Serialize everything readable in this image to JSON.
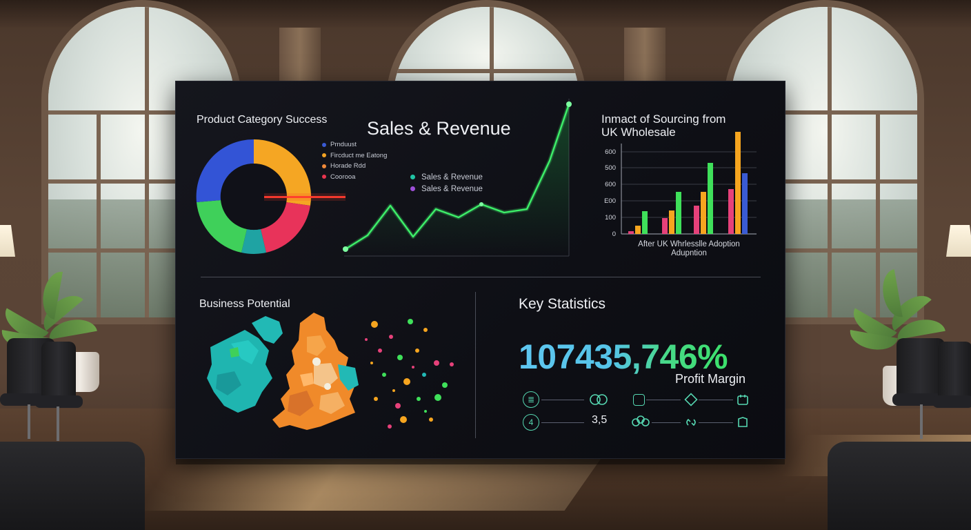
{
  "dashboard": {
    "product_panel": {
      "title": "Product Category Success",
      "legend": [
        {
          "label": "Prnduust",
          "color": "#3a5bd4"
        },
        {
          "label": "Fircduct me Eatong",
          "color": "#f2a324"
        },
        {
          "label": "Horade Rdd",
          "color": "#f08a3a"
        },
        {
          "label": "Coorooa",
          "color": "#e8354f"
        }
      ],
      "donut_colors": [
        "#f5a623",
        "#e8335a",
        "#1fa3a3",
        "#3fd05a",
        "#3354d6"
      ]
    },
    "sales_panel": {
      "title": "Sales & Revenue",
      "legend": [
        {
          "label": "Sales & Revenue",
          "color": "#21c4a4"
        },
        {
          "label": "Sales & Revenue",
          "color": "#9e4fd8"
        }
      ],
      "line_color": "#3ef06a"
    },
    "impact_panel": {
      "title_line1": "Inmact of Sourcing from",
      "title_line2": "UK Wholesale",
      "y_labels": [
        "600",
        "500",
        "600",
        "E00",
        "100",
        "0"
      ],
      "caption_line1": "After UK Whrlesslle Adoption",
      "caption_line2": "Adupntion"
    },
    "business_panel": {
      "title": "Business Potential"
    },
    "stats_panel": {
      "title": "Key Statistics",
      "headline": "107435,746%",
      "headline_label": "Profit Margin",
      "secondary_value": "3,5",
      "icons": [
        "list-icon",
        "rings-icon",
        "calendar-icon",
        "diamond-icon",
        "badge-icon",
        "number-4-icon",
        "link-icon",
        "clover-icon"
      ]
    }
  }
}
